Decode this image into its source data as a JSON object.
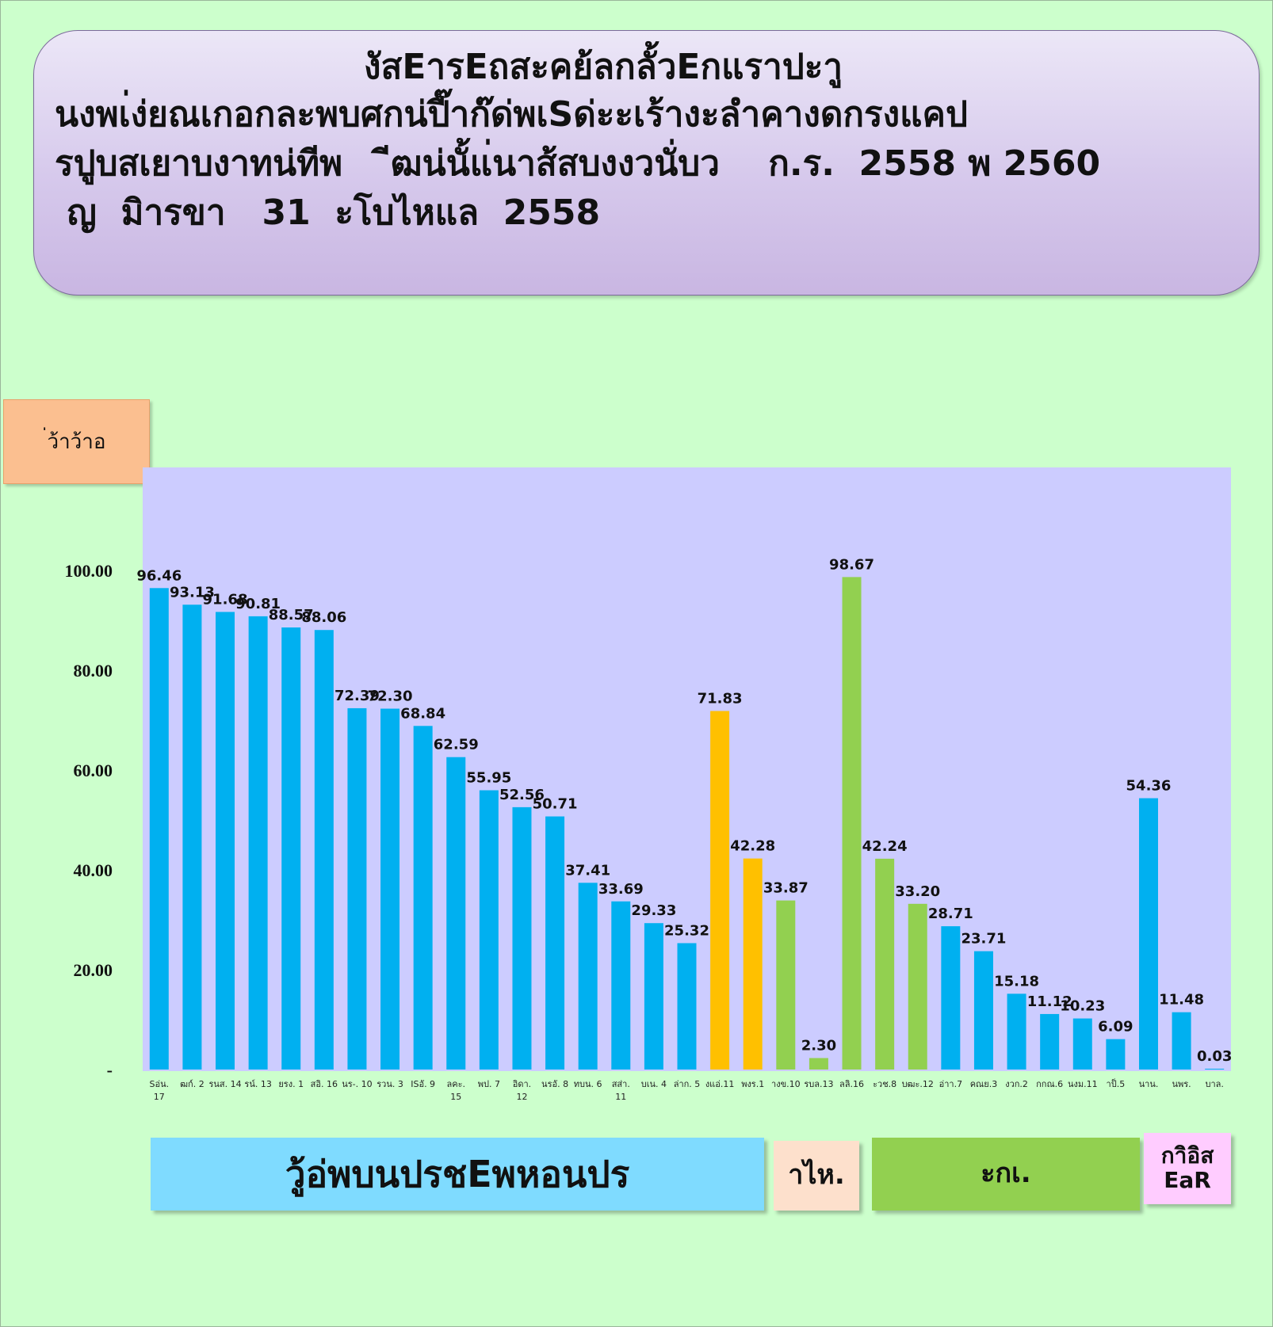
{
  "title": {
    "line1": "งัสEารEถสะคย้ลกลั้วEกแราปะาู",
    "line2": "นงพเ่ง่ยณเกอกละพบศกน่ปี๊าก๊ด่พเSด่ะะเร้างะลำคางดกรงแคป",
    "line3": "รปูบสเยาบงาทน่ทีพ    ีฒน่นั้แ่นาส้สบงงวนั่บว    ก.ร.  2558 พ 2560",
    "line4": " ญ  มิารขา   31  ะโบไหแล  2558"
  },
  "colors": {
    "blue": "#00b0f0",
    "orange": "#ffc000",
    "green": "#92d050",
    "plot_bg": "#ccccff"
  },
  "chart_data": {
    "type": "bar",
    "ylabel": "่ว้าว้าอ",
    "ylim": [
      0,
      120
    ],
    "yticks": [
      {
        "value": 0,
        "label": "-"
      },
      {
        "value": 20,
        "label": "20.00"
      },
      {
        "value": 40,
        "label": "40.00"
      },
      {
        "value": 60,
        "label": "60.00"
      },
      {
        "value": 80,
        "label": "80.00"
      },
      {
        "value": 100,
        "label": "100.00"
      }
    ],
    "grid": false,
    "bars": [
      {
        "category": "Sอ่น.\n17",
        "value": 96.46,
        "color": "blue"
      },
      {
        "category": "ฒก์. 2",
        "value": 93.13,
        "color": "blue"
      },
      {
        "category": "รนส. 14",
        "value": 91.68,
        "color": "blue"
      },
      {
        "category": "รน์. 13",
        "value": 90.81,
        "color": "blue"
      },
      {
        "category": "ยรง. 1",
        "value": 88.57,
        "color": "blue"
      },
      {
        "category": "สอิ. 16",
        "value": 88.06,
        "color": "blue"
      },
      {
        "category": "นร-. 10",
        "value": 72.39,
        "color": "blue"
      },
      {
        "category": "รวน. 3",
        "value": 72.3,
        "color": "blue"
      },
      {
        "category": "ISอั. 9",
        "value": 68.84,
        "color": "blue"
      },
      {
        "category": "ลคะ.\n15",
        "value": 62.59,
        "color": "blue"
      },
      {
        "category": "พป. 7",
        "value": 55.95,
        "color": "blue"
      },
      {
        "category": "อิดา.\n12",
        "value": 52.56,
        "color": "blue"
      },
      {
        "category": "นรอั. 8",
        "value": 50.71,
        "color": "blue"
      },
      {
        "category": "ทบน. 6",
        "value": 37.41,
        "color": "blue"
      },
      {
        "category": "สส่า.\n11",
        "value": 33.69,
        "color": "blue"
      },
      {
        "category": "บเน. 4",
        "value": 29.33,
        "color": "blue"
      },
      {
        "category": "ล่าก. 5",
        "value": 25.32,
        "color": "blue"
      },
      {
        "category": "งแอ่.11",
        "value": 71.83,
        "color": "orange"
      },
      {
        "category": "พงร.1",
        "value": 42.28,
        "color": "orange"
      },
      {
        "category": "างข.10",
        "value": 33.87,
        "color": "green"
      },
      {
        "category": "รบล.13",
        "value": 2.3,
        "color": "green"
      },
      {
        "category": "ลลิ.16",
        "value": 98.67,
        "color": "green"
      },
      {
        "category": "ะวช.8",
        "value": 42.24,
        "color": "green"
      },
      {
        "category": "บฒะ.12",
        "value": 33.2,
        "color": "green"
      },
      {
        "category": "อ่าา.7",
        "value": 28.71,
        "color": "blue"
      },
      {
        "category": "คณย.3",
        "value": 23.71,
        "color": "blue"
      },
      {
        "category": "งวก.2",
        "value": 15.18,
        "color": "blue"
      },
      {
        "category": "กกณ.6",
        "value": 11.12,
        "color": "blue"
      },
      {
        "category": "นงม.11",
        "value": 10.23,
        "color": "blue"
      },
      {
        "category": "าป็.5",
        "value": 6.09,
        "color": "blue"
      },
      {
        "category": "นาน.",
        "value": 54.36,
        "color": "blue"
      },
      {
        "category": "นพร.",
        "value": 11.48,
        "color": "blue"
      },
      {
        "category": "บาล.",
        "value": 0.03,
        "color": "blue"
      }
    ]
  },
  "legend": [
    {
      "label": "วู้อ่พบนปรชEพหอนปร",
      "bg": "#7fdbff"
    },
    {
      "label": "าไห.",
      "bg": "#fde0cc"
    },
    {
      "label": "ะกเ.",
      "bg": "#92d050"
    },
    {
      "label": "กาิอิส\nEaR",
      "bg": "#ffccff"
    }
  ]
}
